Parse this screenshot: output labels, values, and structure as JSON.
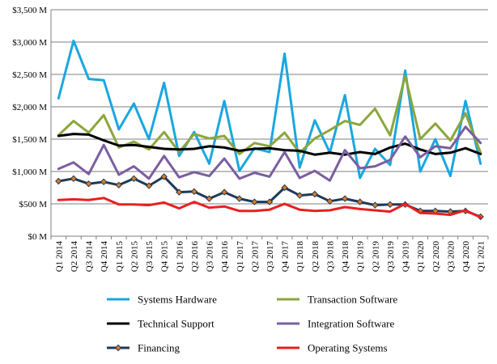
{
  "chart_data": {
    "type": "line",
    "title": "",
    "xlabel": "",
    "ylabel": "",
    "ylim": [
      0,
      3500
    ],
    "yticks": [
      0,
      500,
      1000,
      1500,
      2000,
      2500,
      3000,
      3500
    ],
    "ytick_labels": [
      "$0 M",
      "$500 M",
      "$1,000 M",
      "$1,500 M",
      "$2,000 M",
      "$2,500 M",
      "$3,000 M",
      "$3,500 M"
    ],
    "grid": true,
    "legend_position": "bottom",
    "categories": [
      "Q1 2014",
      "Q2 2014",
      "Q3 2014",
      "Q4 2014",
      "Q1 2015",
      "Q2 2015",
      "Q3 2015",
      "Q4 2015",
      "Q1 2016",
      "Q2 2016",
      "Q3 2016",
      "Q4 2016",
      "Q1 2017",
      "Q2 2017",
      "Q3 2017",
      "Q4 2017",
      "Q1 2018",
      "Q2 2018",
      "Q3 2018",
      "Q4 2018",
      "Q1 2019",
      "Q2 2019",
      "Q3 2019",
      "Q4 2019",
      "Q1 2020",
      "Q2 2020",
      "Q3 2020",
      "Q4 2020",
      "Q1 2021"
    ],
    "series": [
      {
        "name": "Systems Hardware",
        "color": "#1aa7e0",
        "width": 3,
        "marker": false,
        "values": [
          2130,
          3020,
          2430,
          2410,
          1650,
          2050,
          1500,
          2370,
          1240,
          1610,
          1120,
          2090,
          1010,
          1360,
          1300,
          2820,
          1060,
          1790,
          1290,
          2180,
          900,
          1350,
          1100,
          2560,
          1000,
          1500,
          930,
          2090,
          1120
        ]
      },
      {
        "name": "Transaction Software",
        "color": "#8ca63c",
        "width": 3,
        "marker": false,
        "values": [
          1560,
          1780,
          1600,
          1870,
          1370,
          1460,
          1340,
          1610,
          1300,
          1580,
          1510,
          1550,
          1270,
          1440,
          1390,
          1600,
          1290,
          1510,
          1640,
          1780,
          1720,
          1970,
          1560,
          2480,
          1500,
          1740,
          1480,
          1900,
          1290
        ]
      },
      {
        "name": "Technical Support",
        "color": "#000000",
        "width": 3,
        "marker": false,
        "values": [
          1550,
          1580,
          1570,
          1480,
          1400,
          1410,
          1380,
          1350,
          1340,
          1350,
          1390,
          1370,
          1320,
          1350,
          1360,
          1330,
          1320,
          1260,
          1290,
          1260,
          1300,
          1270,
          1370,
          1430,
          1340,
          1270,
          1290,
          1360,
          1270
        ]
      },
      {
        "name": "Integration Software",
        "color": "#7b5ea0",
        "width": 3,
        "marker": false,
        "values": [
          1040,
          1140,
          960,
          1410,
          950,
          1080,
          890,
          1240,
          910,
          990,
          930,
          1200,
          890,
          980,
          920,
          1300,
          900,
          1010,
          860,
          1330,
          1050,
          1080,
          1180,
          1540,
          1220,
          1390,
          1360,
          1690,
          1440
        ]
      },
      {
        "name": "Financing",
        "color": "#1f3a55",
        "width": 3,
        "marker": true,
        "marker_color": "#e07b24",
        "values": [
          850,
          890,
          810,
          840,
          790,
          890,
          780,
          920,
          680,
          690,
          580,
          680,
          580,
          530,
          530,
          750,
          630,
          650,
          540,
          580,
          530,
          480,
          490,
          490,
          390,
          390,
          380,
          390,
          300
        ]
      },
      {
        "name": "Operating Systems",
        "color": "#e8201f",
        "width": 3,
        "marker": false,
        "values": [
          560,
          570,
          560,
          590,
          490,
          490,
          480,
          520,
          430,
          530,
          440,
          460,
          390,
          390,
          410,
          500,
          410,
          390,
          400,
          450,
          420,
          400,
          380,
          500,
          360,
          350,
          330,
          400,
          290
        ]
      }
    ]
  }
}
